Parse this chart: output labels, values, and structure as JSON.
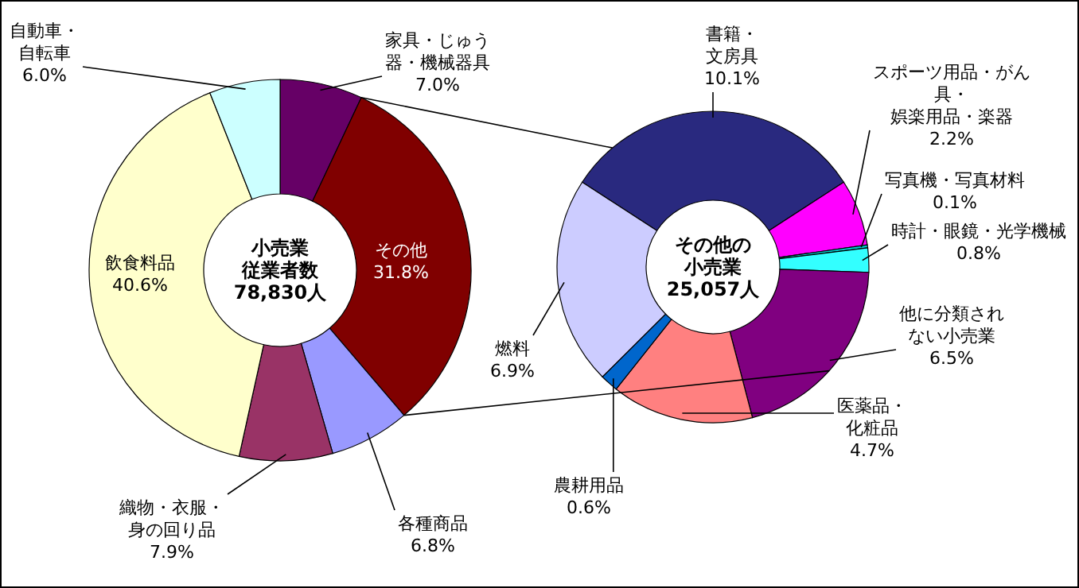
{
  "chart_data": [
    {
      "type": "donut",
      "title": "小売業従業者数78,830人",
      "categories": [
        "家具・じゅう器・機械器具",
        "その他",
        "各種商品",
        "織物・衣服・身の回り品",
        "飲食料品",
        "自動車・自転車"
      ],
      "values": [
        7.0,
        31.8,
        6.8,
        7.9,
        40.6,
        6.0
      ],
      "value_labels": [
        "7.0%",
        "31.8%",
        "6.8%",
        "7.9%",
        "40.6%",
        "6.0%"
      ],
      "colors": [
        "#660066",
        "#800000",
        "#9999ff",
        "#993366",
        "#ffffcc",
        "#ccffff"
      ]
    },
    {
      "type": "donut",
      "title": "その他の小売業25,057人",
      "categories": [
        "書籍・文房具",
        "スポーツ用品・がん具・娯楽用品・楽器",
        "写真機・写真材料",
        "時計・眼鏡・光学機械",
        "他に分類されない小売業",
        "医薬品・化粧品",
        "農耕用品",
        "燃料"
      ],
      "values": [
        10.1,
        2.2,
        0.1,
        0.8,
        6.5,
        4.7,
        0.6,
        6.9
      ],
      "value_labels": [
        "10.1%",
        "2.2%",
        "0.1%",
        "0.8%",
        "6.5%",
        "4.7%",
        "0.6%",
        "6.9%"
      ],
      "colors": [
        "#29297f",
        "#ff00ff",
        "#00cccc",
        "#33ffff",
        "#800080",
        "#ff8080",
        "#0066cc",
        "#ccccff"
      ]
    }
  ]
}
